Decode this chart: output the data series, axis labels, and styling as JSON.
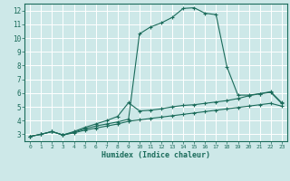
{
  "xlabel": "Humidex (Indice chaleur)",
  "xlim": [
    -0.5,
    23.5
  ],
  "ylim": [
    2.5,
    12.5
  ],
  "yticks": [
    3,
    4,
    5,
    6,
    7,
    8,
    9,
    10,
    11,
    12
  ],
  "xticks": [
    0,
    1,
    2,
    3,
    4,
    5,
    6,
    7,
    8,
    9,
    10,
    11,
    12,
    13,
    14,
    15,
    16,
    17,
    18,
    19,
    20,
    21,
    22,
    23
  ],
  "bg_color": "#cde8e8",
  "line_color": "#1a6b5a",
  "grid_color": "#ffffff",
  "line1_x": [
    0,
    1,
    2,
    3,
    4,
    5,
    6,
    7,
    8,
    9,
    10,
    11,
    12,
    13,
    14,
    15,
    16,
    17,
    18,
    19,
    20,
    21,
    22,
    23
  ],
  "line1_y": [
    2.85,
    3.0,
    3.2,
    2.95,
    3.15,
    3.4,
    3.6,
    3.75,
    3.9,
    4.1,
    10.3,
    10.8,
    11.1,
    11.5,
    12.15,
    12.2,
    11.8,
    11.7,
    7.9,
    5.85,
    5.85,
    5.95,
    6.1,
    5.3
  ],
  "line2_x": [
    0,
    1,
    2,
    3,
    4,
    5,
    6,
    7,
    8,
    9,
    10,
    11,
    12,
    13,
    14,
    15,
    16,
    17,
    18,
    19,
    20,
    21,
    22,
    23
  ],
  "line2_y": [
    2.85,
    3.0,
    3.2,
    2.95,
    3.2,
    3.5,
    3.75,
    4.0,
    4.3,
    5.3,
    4.7,
    4.75,
    4.85,
    5.0,
    5.1,
    5.15,
    5.25,
    5.35,
    5.45,
    5.6,
    5.8,
    5.95,
    6.05,
    5.25
  ],
  "line3_x": [
    0,
    1,
    2,
    3,
    4,
    5,
    6,
    7,
    8,
    9,
    10,
    11,
    12,
    13,
    14,
    15,
    16,
    17,
    18,
    19,
    20,
    21,
    22,
    23
  ],
  "line3_y": [
    2.85,
    3.0,
    3.2,
    2.95,
    3.1,
    3.3,
    3.45,
    3.6,
    3.75,
    3.95,
    4.05,
    4.15,
    4.25,
    4.35,
    4.45,
    4.55,
    4.65,
    4.75,
    4.85,
    4.95,
    5.05,
    5.15,
    5.25,
    5.05
  ]
}
